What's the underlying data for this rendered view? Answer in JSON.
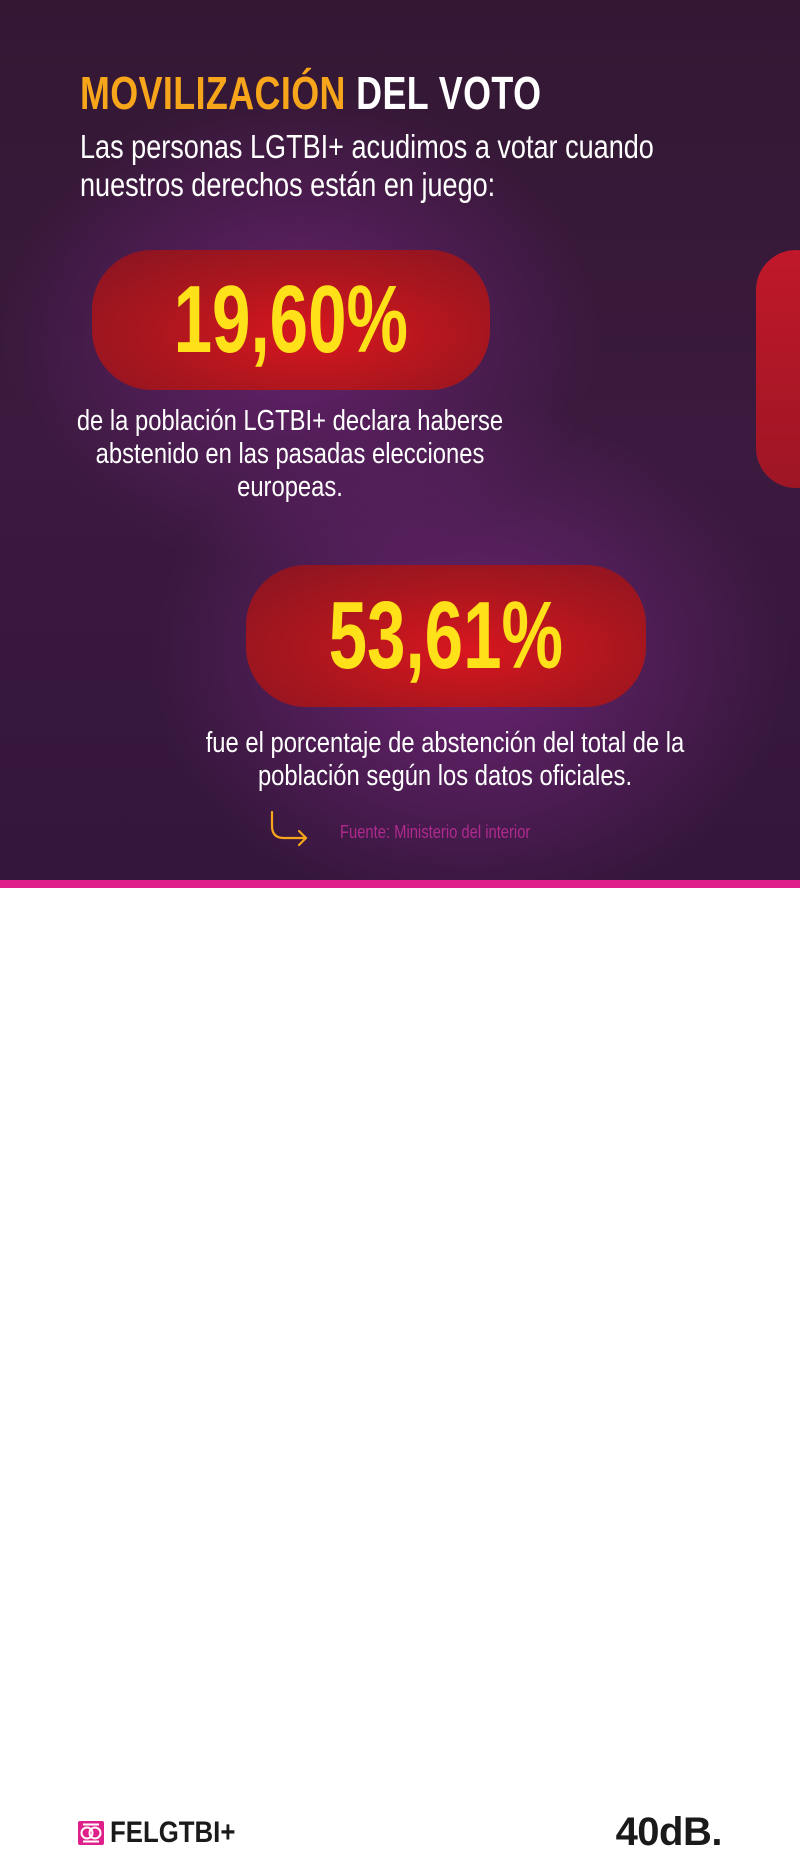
{
  "header": {
    "title_accent": "MOVILIZACIÓN",
    "title_rest": "DEL VOTO",
    "intro": "Las personas LGTBI+ acudimos a votar cuando nuestros derechos están en juego:"
  },
  "stats": [
    {
      "value": "19,60%",
      "caption": "de la población LGTBI+ declara haberse abstenido en las pasadas elecciones europeas."
    },
    {
      "value": "53,61%",
      "caption": "fue el porcentaje de abstención del total de la población según los datos oficiales."
    }
  ],
  "source": "Fuente: Ministerio del interior",
  "footer": {
    "logo_left": "FELGTBI+",
    "logo_right": "40dB."
  },
  "colors": {
    "background": "#3a1a3e",
    "accent_orange": "#f7a51b",
    "number_yellow": "#ffe11a",
    "pill_red": "#d8161f",
    "brand_pink": "#e0208a"
  },
  "icons": {
    "source_arrow": "arrow-turn-right-icon",
    "brand_logo": "felgtbi-logo-icon"
  }
}
